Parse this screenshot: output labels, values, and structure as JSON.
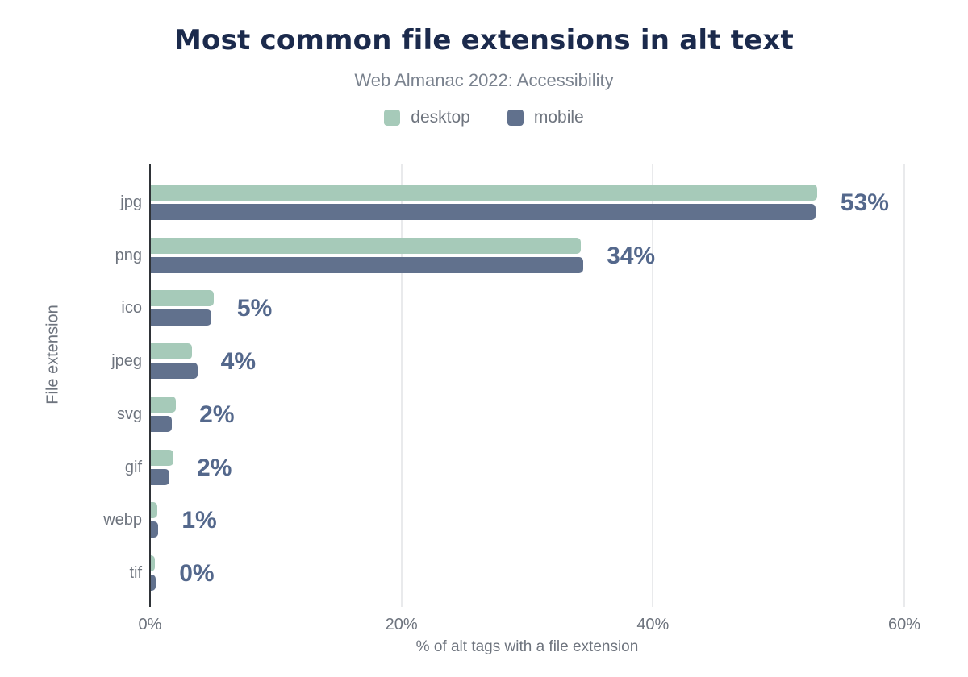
{
  "header": {
    "title": "Most common file extensions in alt text",
    "subtitle": "Web Almanac 2022: Accessibility"
  },
  "colors": {
    "desktop": "#a6cab9",
    "mobile": "#61718d",
    "title_text": "#1b2a4c",
    "subtitle_text": "#7a828e",
    "axis_text": "#6e747e",
    "value_label_text": "#54688c",
    "gridline": "#e9eaec",
    "axis_line": "#2f3338"
  },
  "chart_data": {
    "type": "bar",
    "orientation": "horizontal",
    "title": "Most common file extensions in alt text",
    "subtitle": "Web Almanac 2022: Accessibility",
    "xlabel": "% of alt tags with a file extension",
    "ylabel": "File extension",
    "categories": [
      "jpg",
      "png",
      "ico",
      "jpeg",
      "svg",
      "gif",
      "webp",
      "tif"
    ],
    "series": [
      {
        "name": "desktop",
        "values": [
          53.0,
          34.2,
          5.0,
          3.3,
          2.0,
          1.8,
          0.5,
          0.3
        ]
      },
      {
        "name": "mobile",
        "values": [
          52.9,
          34.4,
          4.8,
          3.7,
          1.7,
          1.5,
          0.6,
          0.4
        ]
      }
    ],
    "value_labels": [
      "53%",
      "34%",
      "5%",
      "4%",
      "2%",
      "2%",
      "1%",
      "0%"
    ],
    "xlim": [
      0,
      60
    ],
    "xticks": [
      {
        "value": 0,
        "label": "0%"
      },
      {
        "value": 20,
        "label": "20%"
      },
      {
        "value": 40,
        "label": "40%"
      },
      {
        "value": 60,
        "label": "60%"
      }
    ],
    "grid": "vertical",
    "legend_position": "top"
  }
}
